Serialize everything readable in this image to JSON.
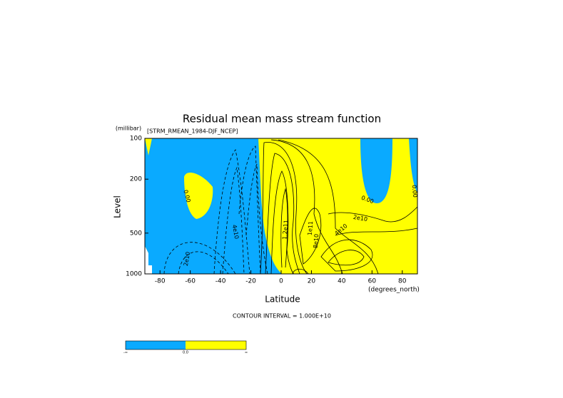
{
  "chart_data": {
    "type": "contour",
    "title": "Residual mean mass stream function",
    "subtitle": "[STRM_RMEAN_1984-DJF_NCEP]",
    "x_label": "Latitude",
    "x_unit": "(degrees_north)",
    "y_label": "Level",
    "y_unit": "(millibar)",
    "xlim": [
      -90,
      90
    ],
    "xticks": [
      -80,
      -60,
      -40,
      -20,
      0,
      20,
      40,
      60,
      80
    ],
    "ylim": [
      100,
      1000
    ],
    "y_log": true,
    "y_inverted": true,
    "yticks": [
      100,
      200,
      500,
      1000
    ],
    "note": "CONTOUR INTERVAL = 1.000E+10",
    "contour_labels": [
      "0.00",
      "4e10",
      "2e10",
      "1.2e11",
      "1e11",
      "8e10",
      "4e10",
      "2e10",
      "0.00",
      "0.00"
    ],
    "fill_colors": [
      "#0aaaff",
      "#ffff00"
    ],
    "colorbar_labels": [
      "-∞",
      "0.0",
      "∞"
    ]
  }
}
